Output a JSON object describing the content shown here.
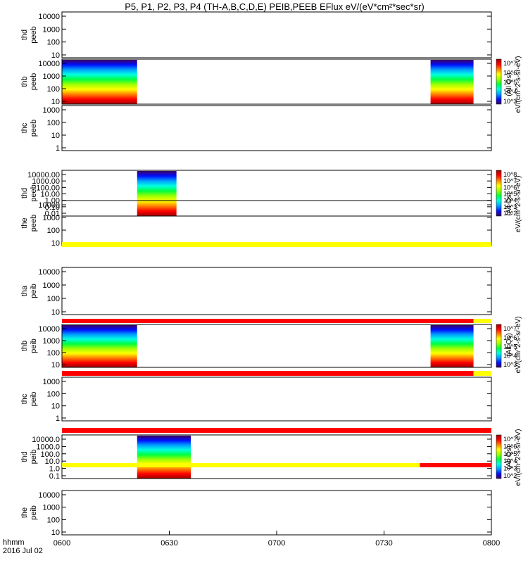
{
  "title": "P5, P1, P2, P3, P4 (TH-A,B,C,D,E) PEIB,PEEB EFlux eV/(eV*cm²*sec*sr)",
  "footer": {
    "time_label": "hhmm",
    "date_label": "2016 Jul 02"
  },
  "colorbar_labels": {
    "peeb_a": "(All Qs)",
    "peeb_b": "eV/(cm^2-s-sr-eV)",
    "peeb_c": "(All Qs)",
    "peeb_d": "eV/(cm^2-s-sr-eV)",
    "peib_a": "(All Qs)",
    "peib_b": "eV/(cm^2-s-sr-eV)",
    "peib_c": "(All Qs)",
    "peib_d": "eV/(cm^2-s-sr-eV)"
  },
  "colors": {
    "flag_red": "#ff0000",
    "flag_yellow": "#ffff00",
    "spectrogram_scale": [
      "#3c0060",
      "#0010ff",
      "#00a0ff",
      "#00ffe0",
      "#00ff40",
      "#a0ff00",
      "#ffff00",
      "#ff8000",
      "#ff0000",
      "#a00000"
    ]
  },
  "chart_data": {
    "type": "heatmap",
    "x_ticks": [
      "0600",
      "0630",
      "0700",
      "0730",
      "0800"
    ],
    "xlim": [
      "0600",
      "0800"
    ],
    "panels": [
      {
        "label": [
          "thd",
          "peeb"
        ],
        "yticks": [
          "10000",
          "1000",
          "100",
          "10"
        ],
        "yscale": "log",
        "data_intervals": []
      },
      {
        "label": [
          "thb",
          "peeb"
        ],
        "yticks": [
          "10000",
          "1000",
          "100",
          "10"
        ],
        "yscale": "log",
        "data_intervals": [
          [
            "0600",
            "0621"
          ],
          [
            "0743",
            "0755"
          ]
        ],
        "colorbar": {
          "ticks": [
            "10^7",
            "10^6",
            "10^5",
            "10^4",
            "10^3"
          ]
        }
      },
      {
        "label": [
          "thc",
          "peeb"
        ],
        "yticks": [
          "1000",
          "100",
          "10",
          "1"
        ],
        "yscale": "log",
        "data_intervals": []
      },
      {
        "label": [
          "thd",
          "peeb"
        ],
        "yticks": [
          "10000.00",
          "1000.00",
          "100.00",
          "10.00",
          "1.00",
          "0.10",
          "0.01"
        ],
        "yscale": "log",
        "data_intervals": [
          [
            "0621",
            "0632"
          ]
        ],
        "colorbar": {
          "ticks": [
            "10^8",
            "10^7",
            "10^6",
            "10^5",
            "10^4",
            "10^3",
            "10^2"
          ]
        }
      },
      {
        "label": [
          "the",
          "peeb"
        ],
        "yticks": [
          "10000",
          "1000",
          "100",
          "10"
        ],
        "yscale": "log",
        "data_intervals": [],
        "flag_bar": [
          [
            "0600",
            "0800",
            "yellow"
          ]
        ]
      },
      {
        "label": [
          "tha",
          "peib"
        ],
        "yticks": [
          "10000",
          "1000",
          "100",
          "10"
        ],
        "yscale": "log",
        "data_intervals": [],
        "flag_bar": [
          [
            "0600",
            "0755",
            "red"
          ],
          [
            "0755",
            "0800",
            "yellow"
          ]
        ]
      },
      {
        "label": [
          "thb",
          "peib"
        ],
        "yticks": [
          "10000",
          "1000",
          "100",
          "10"
        ],
        "yscale": "log",
        "data_intervals": [
          [
            "0600",
            "0621"
          ],
          [
            "0743",
            "0755"
          ]
        ],
        "colorbar": {
          "ticks": [
            "10^7",
            "10^6",
            "10^5",
            "10^4",
            "10^3"
          ]
        },
        "flag_bar": [
          [
            "0600",
            "0755",
            "red"
          ],
          [
            "0755",
            "0800",
            "yellow"
          ]
        ]
      },
      {
        "label": [
          "thc",
          "peib"
        ],
        "yticks": [
          "1000",
          "100",
          "10",
          "1"
        ],
        "yscale": "log",
        "data_intervals": [],
        "flag_bar": [
          [
            "0600",
            "0800",
            "red"
          ]
        ]
      },
      {
        "label": [
          "thd",
          "peib"
        ],
        "yticks": [
          "10000.0",
          "1000.0",
          "100.0",
          "10.0",
          "1.0",
          "0.1"
        ],
        "yscale": "log",
        "data_intervals": [
          [
            "0621",
            "0636"
          ]
        ],
        "colorbar": {
          "ticks": [
            "10^7",
            "10^6",
            "10^5",
            "10^4",
            "10^3",
            "10^2"
          ]
        },
        "flag_bar": [
          [
            "0600",
            "0740",
            "yellow"
          ],
          [
            "0740",
            "0800",
            "red"
          ]
        ]
      },
      {
        "label": [
          "the",
          "peib"
        ],
        "yticks": [
          "10000",
          "1000",
          "100",
          "10"
        ],
        "yscale": "log",
        "data_intervals": []
      }
    ]
  }
}
